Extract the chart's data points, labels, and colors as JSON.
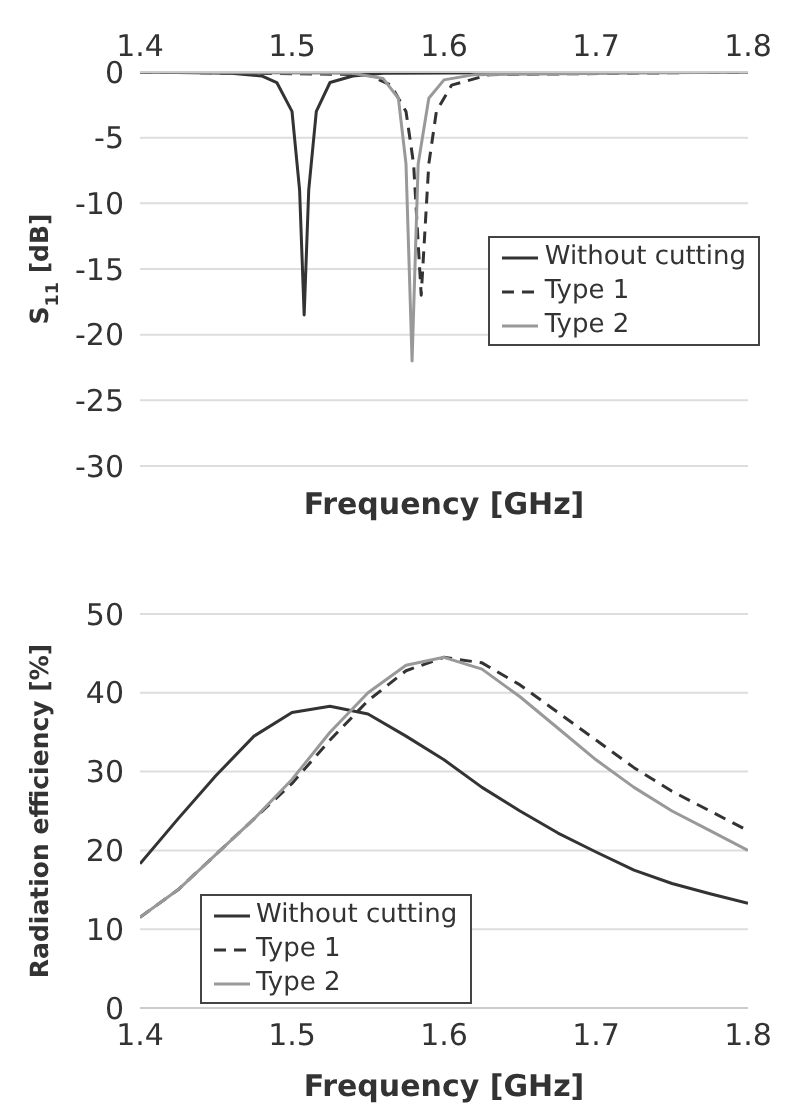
{
  "chart_data": [
    {
      "type": "line",
      "xlabel": "Frequency [GHz]",
      "ylabel": "S$_{11}$ [dB]",
      "xlim": [
        1.4,
        1.8
      ],
      "xticks": [
        1.4,
        1.5,
        1.6,
        1.7,
        1.8
      ],
      "ylim": [
        -30,
        0
      ],
      "yticks": [
        -30,
        -25,
        -20,
        -15,
        -10,
        -5,
        0
      ],
      "grid": "y",
      "legend": "right",
      "series": [
        {
          "name": "Without cutting",
          "color": "#333333",
          "line_style": "solid",
          "x": [
            1.4,
            1.46,
            1.48,
            1.49,
            1.5,
            1.505,
            1.508,
            1.511,
            1.516,
            1.525,
            1.54,
            1.56,
            1.8
          ],
          "values": [
            0,
            -0.1,
            -0.3,
            -0.8,
            -3,
            -9,
            -18.5,
            -9,
            -3,
            -0.8,
            -0.3,
            -0.1,
            0
          ]
        },
        {
          "name": "Type 1",
          "color": "#333333",
          "line_style": "dashed",
          "x": [
            1.4,
            1.55,
            1.565,
            1.575,
            1.58,
            1.585,
            1.59,
            1.595,
            1.605,
            1.63,
            1.8
          ],
          "values": [
            0,
            -0.2,
            -1,
            -3,
            -7,
            -17,
            -7,
            -3,
            -1,
            -0.2,
            0
          ]
        },
        {
          "name": "Type 2",
          "color": "#999999",
          "line_style": "solid",
          "x": [
            1.4,
            1.54,
            1.56,
            1.57,
            1.575,
            1.579,
            1.583,
            1.59,
            1.6,
            1.62,
            1.8
          ],
          "values": [
            0,
            -0.1,
            -0.5,
            -2,
            -7,
            -22,
            -7,
            -2,
            -0.6,
            -0.2,
            0
          ]
        }
      ]
    },
    {
      "type": "line",
      "xlabel": "Frequency [GHz]",
      "ylabel": "Radiation efficiency [%]",
      "xlim": [
        1.4,
        1.8
      ],
      "xticks": [
        1.4,
        1.5,
        1.6,
        1.7,
        1.8
      ],
      "ylim": [
        0,
        50
      ],
      "yticks": [
        0,
        10,
        20,
        30,
        40,
        50
      ],
      "grid": "y",
      "legend": "bottom left",
      "series": [
        {
          "name": "Without cutting",
          "color": "#333333",
          "line_style": "solid",
          "x": [
            1.4,
            1.425,
            1.45,
            1.475,
            1.5,
            1.525,
            1.55,
            1.575,
            1.6,
            1.625,
            1.65,
            1.675,
            1.7,
            1.725,
            1.75,
            1.775,
            1.8
          ],
          "values": [
            18.3,
            24,
            29.5,
            34.5,
            37.5,
            38.3,
            37.3,
            34.5,
            31.5,
            28,
            25,
            22.2,
            19.8,
            17.5,
            15.8,
            14.5,
            13.3
          ]
        },
        {
          "name": "Type 1",
          "color": "#333333",
          "line_style": "dashed",
          "x": [
            1.4,
            1.425,
            1.45,
            1.475,
            1.5,
            1.525,
            1.55,
            1.575,
            1.6,
            1.625,
            1.65,
            1.675,
            1.7,
            1.725,
            1.75,
            1.775,
            1.8
          ],
          "values": [
            11.5,
            15,
            19.5,
            24,
            28.5,
            34,
            39,
            42.8,
            44.5,
            43.8,
            41,
            37.5,
            34,
            30.5,
            27.5,
            25,
            22.5
          ]
        },
        {
          "name": "Type 2",
          "color": "#999999",
          "line_style": "solid",
          "x": [
            1.4,
            1.425,
            1.45,
            1.475,
            1.5,
            1.525,
            1.55,
            1.575,
            1.6,
            1.625,
            1.65,
            1.675,
            1.7,
            1.725,
            1.75,
            1.775,
            1.8
          ],
          "values": [
            11.5,
            15,
            19.5,
            24,
            29,
            35,
            40,
            43.5,
            44.5,
            43,
            39.5,
            35.5,
            31.5,
            28,
            25,
            22.5,
            20
          ]
        }
      ]
    }
  ]
}
